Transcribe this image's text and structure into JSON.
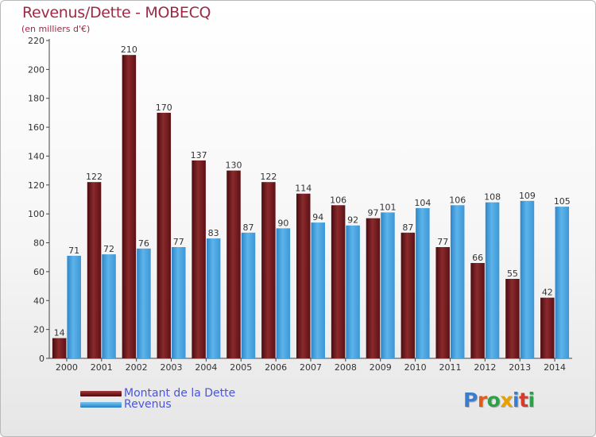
{
  "header": {
    "title": "Revenus/Dette - MOBECQ",
    "subtitle": "(en milliers d'€)"
  },
  "colors": {
    "dette": "#7a1c1f",
    "revenus": "#4aa3e0",
    "title": "#9c2a47",
    "legend_text": "#4a55d8"
  },
  "legend": {
    "dette_label": "Montant de la Dette",
    "revenus_label": "Revenus"
  },
  "logo": {
    "text": "Proxiti",
    "letter_colors": [
      "#3a7dd0",
      "#e05a1a",
      "#2ea04a",
      "#e8a000",
      "#3a7dd0",
      "#d93a2a",
      "#2ea04a"
    ]
  },
  "chart_data": {
    "type": "bar",
    "categories": [
      "2000",
      "2001",
      "2002",
      "2003",
      "2004",
      "2005",
      "2006",
      "2007",
      "2008",
      "2009",
      "2010",
      "2011",
      "2012",
      "2013",
      "2014"
    ],
    "series": [
      {
        "name": "Montant de la Dette",
        "values": [
          14,
          122,
          210,
          170,
          137,
          130,
          122,
          114,
          106,
          97,
          87,
          77,
          66,
          55,
          42
        ]
      },
      {
        "name": "Revenus",
        "values": [
          71,
          72,
          76,
          77,
          83,
          87,
          90,
          94,
          92,
          101,
          104,
          106,
          108,
          109,
          105
        ]
      }
    ],
    "ylim": [
      0,
      220
    ],
    "yticks": [
      0,
      20,
      40,
      60,
      80,
      100,
      120,
      140,
      160,
      180,
      200,
      220
    ],
    "grid": false,
    "legend_position": "bottom-left"
  }
}
